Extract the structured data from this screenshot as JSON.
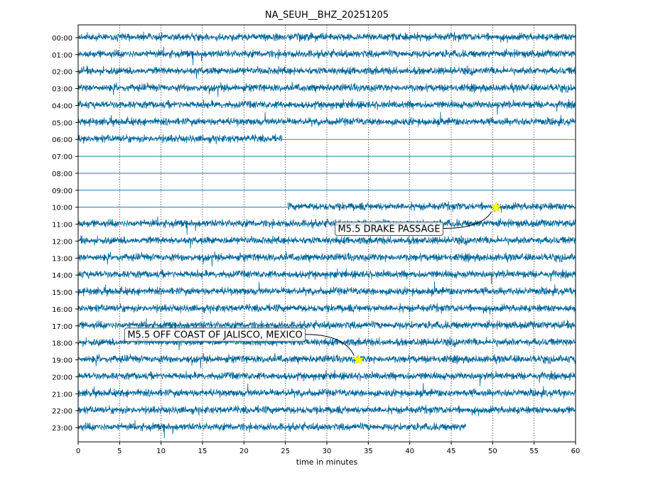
{
  "chart_data": {
    "type": "line",
    "title": "NA_SEUH__BHZ_20251205",
    "xlabel": "time in minutes",
    "ylabel": "",
    "xlim": [
      0,
      60
    ],
    "x_ticks": [
      0,
      5,
      10,
      15,
      20,
      25,
      30,
      35,
      40,
      45,
      50,
      55,
      60
    ],
    "grid": "vertical dotted",
    "trace_color": "#006699",
    "rows": [
      {
        "label": "00:00",
        "segments": [
          {
            "start": 0,
            "end": 60,
            "kind": "data"
          }
        ]
      },
      {
        "label": "01:00",
        "segments": [
          {
            "start": 0,
            "end": 60,
            "kind": "data"
          }
        ]
      },
      {
        "label": "02:00",
        "segments": [
          {
            "start": 0,
            "end": 60,
            "kind": "data"
          }
        ]
      },
      {
        "label": "03:00",
        "segments": [
          {
            "start": 0,
            "end": 60,
            "kind": "data"
          }
        ]
      },
      {
        "label": "04:00",
        "segments": [
          {
            "start": 0,
            "end": 60,
            "kind": "data"
          }
        ]
      },
      {
        "label": "05:00",
        "segments": [
          {
            "start": 0,
            "end": 60,
            "kind": "data"
          }
        ]
      },
      {
        "label": "06:00",
        "segments": [
          {
            "start": 0,
            "end": 24.6,
            "kind": "data"
          },
          {
            "start": 24.6,
            "end": 60,
            "kind": "flat"
          }
        ]
      },
      {
        "label": "07:00",
        "segments": [
          {
            "start": 0,
            "end": 60,
            "kind": "flat"
          }
        ]
      },
      {
        "label": "08:00",
        "segments": [
          {
            "start": 0,
            "end": 60,
            "kind": "flat"
          }
        ]
      },
      {
        "label": "09:00",
        "segments": [
          {
            "start": 0,
            "end": 60,
            "kind": "flat"
          }
        ]
      },
      {
        "label": "10:00",
        "segments": [
          {
            "start": 0,
            "end": 25.3,
            "kind": "flat"
          },
          {
            "start": 25.3,
            "end": 60,
            "kind": "data"
          }
        ]
      },
      {
        "label": "11:00",
        "segments": [
          {
            "start": 0,
            "end": 60,
            "kind": "data"
          }
        ]
      },
      {
        "label": "12:00",
        "segments": [
          {
            "start": 0,
            "end": 60,
            "kind": "data"
          }
        ]
      },
      {
        "label": "13:00",
        "segments": [
          {
            "start": 0,
            "end": 60,
            "kind": "data"
          }
        ]
      },
      {
        "label": "14:00",
        "segments": [
          {
            "start": 0,
            "end": 60,
            "kind": "data"
          }
        ]
      },
      {
        "label": "15:00",
        "segments": [
          {
            "start": 0,
            "end": 60,
            "kind": "data"
          }
        ]
      },
      {
        "label": "16:00",
        "segments": [
          {
            "start": 0,
            "end": 60,
            "kind": "data"
          }
        ]
      },
      {
        "label": "17:00",
        "segments": [
          {
            "start": 0,
            "end": 60,
            "kind": "data"
          }
        ]
      },
      {
        "label": "18:00",
        "segments": [
          {
            "start": 0,
            "end": 60,
            "kind": "data"
          }
        ]
      },
      {
        "label": "19:00",
        "segments": [
          {
            "start": 0,
            "end": 60,
            "kind": "data"
          }
        ]
      },
      {
        "label": "20:00",
        "segments": [
          {
            "start": 0,
            "end": 60,
            "kind": "data"
          }
        ]
      },
      {
        "label": "21:00",
        "segments": [
          {
            "start": 0,
            "end": 60,
            "kind": "data"
          }
        ]
      },
      {
        "label": "22:00",
        "segments": [
          {
            "start": 0,
            "end": 60,
            "kind": "data"
          }
        ]
      },
      {
        "label": "23:00",
        "segments": [
          {
            "start": 0,
            "end": 46.8,
            "kind": "data"
          }
        ]
      }
    ],
    "events": [
      {
        "label": "M5.5 DRAKE PASSAGE",
        "row": 10,
        "minute": 50.4,
        "label_minute": 37.5,
        "label_row": 11.25,
        "marker_color": "#ffff00"
      },
      {
        "label": "M5.5 OFF COAST OF JALISCO, MEXICO",
        "row": 19,
        "minute": 33.8,
        "label_minute": 16.5,
        "label_row": 17.5,
        "marker_color": "#ffff00"
      }
    ]
  }
}
